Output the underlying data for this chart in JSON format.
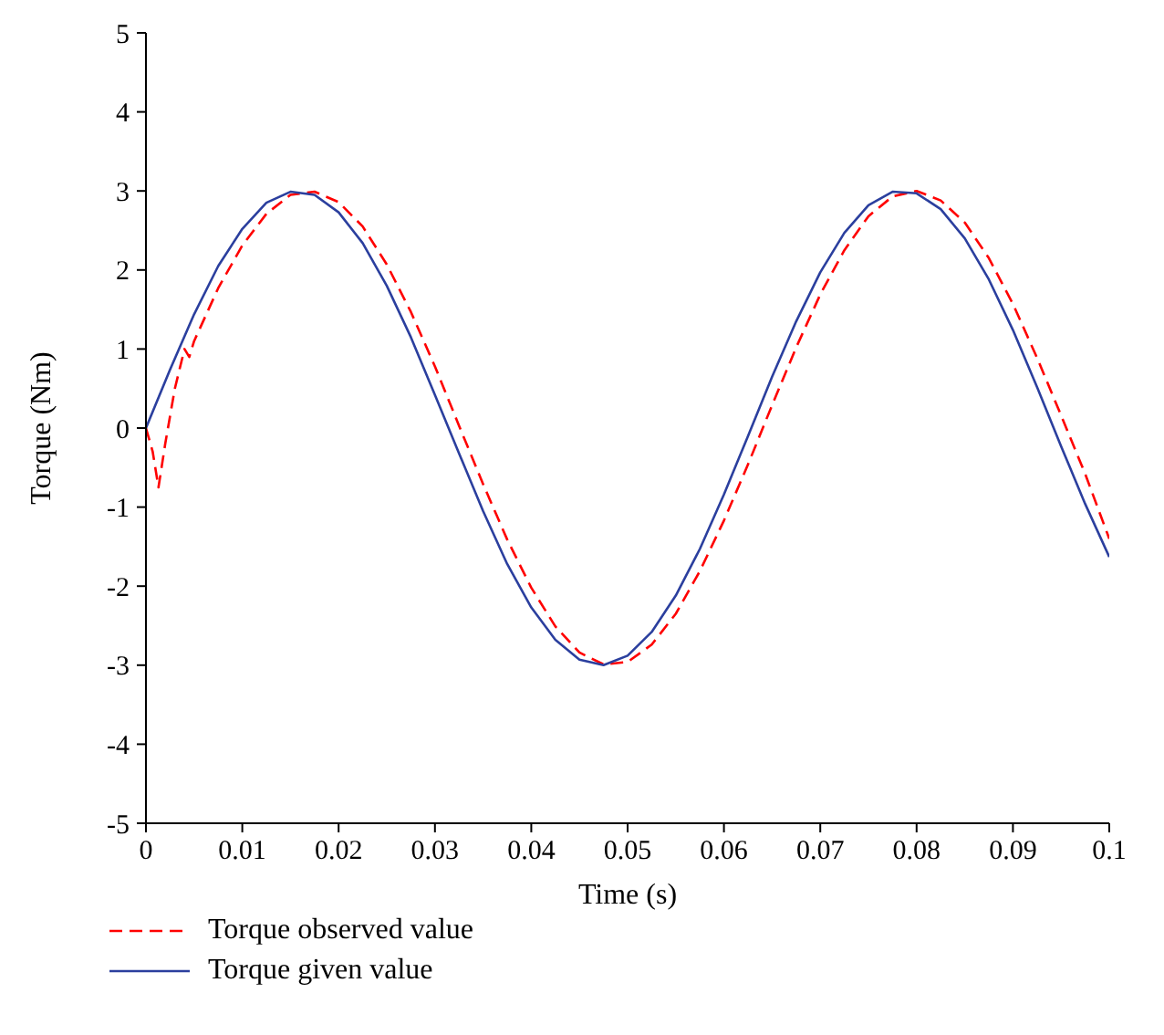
{
  "chart_data": {
    "type": "line",
    "xlabel": "Time (s)",
    "ylabel": "Torque (Nm)",
    "xlim": [
      0,
      0.1
    ],
    "ylim": [
      -5,
      5
    ],
    "xticks": [
      0,
      0.01,
      0.02,
      0.03,
      0.04,
      0.05,
      0.06,
      0.07,
      0.08,
      0.09,
      0.1
    ],
    "yticks": [
      -5,
      -4,
      -3,
      -2,
      -1,
      0,
      1,
      2,
      3,
      4,
      5
    ],
    "grid": false,
    "legend": "bottom",
    "marker": "none",
    "series": [
      {
        "name": "Torque observed value",
        "color": "#ff0000",
        "line_style": "dashed",
        "x": [
          0,
          0.0007,
          0.0013,
          0.002,
          0.003,
          0.004,
          0.0045,
          0.005,
          0.0075,
          0.01,
          0.0125,
          0.015,
          0.0175,
          0.02,
          0.0225,
          0.025,
          0.0275,
          0.03,
          0.0325,
          0.035,
          0.0375,
          0.04,
          0.0425,
          0.045,
          0.0475,
          0.05,
          0.0525,
          0.055,
          0.0575,
          0.06,
          0.0625,
          0.065,
          0.0675,
          0.07,
          0.0725,
          0.075,
          0.0775,
          0.08,
          0.0825,
          0.085,
          0.0875,
          0.09,
          0.0925,
          0.095,
          0.0975,
          0.1
        ],
        "values": [
          0,
          -0.3,
          -0.75,
          -0.2,
          0.5,
          1.0,
          0.9,
          1.1,
          1.77,
          2.31,
          2.71,
          2.95,
          2.99,
          2.86,
          2.55,
          2.07,
          1.47,
          0.78,
          0.03,
          -0.71,
          -1.41,
          -2.02,
          -2.51,
          -2.84,
          -2.99,
          -2.96,
          -2.74,
          -2.35,
          -1.81,
          -1.17,
          -0.46,
          0.29,
          1.02,
          1.69,
          2.25,
          2.68,
          2.93,
          3.0,
          2.88,
          2.6,
          2.15,
          1.57,
          0.89,
          0.16,
          -0.58,
          -1.4
        ]
      },
      {
        "name": "Torque given value",
        "color": "#2b3f9e",
        "line_style": "solid",
        "x": [
          0,
          0.0025,
          0.005,
          0.0075,
          0.01,
          0.0125,
          0.015,
          0.0175,
          0.02,
          0.0225,
          0.025,
          0.0275,
          0.03,
          0.0325,
          0.035,
          0.0375,
          0.04,
          0.0425,
          0.045,
          0.0475,
          0.05,
          0.0525,
          0.055,
          0.0575,
          0.06,
          0.0625,
          0.065,
          0.0675,
          0.07,
          0.0725,
          0.075,
          0.0775,
          0.08,
          0.0825,
          0.085,
          0.0875,
          0.09,
          0.0925,
          0.095,
          0.0975,
          0.1
        ],
        "values": [
          0,
          0.74,
          1.44,
          2.05,
          2.52,
          2.85,
          2.99,
          2.95,
          2.73,
          2.34,
          1.8,
          1.15,
          0.42,
          -0.32,
          -1.05,
          -1.72,
          -2.27,
          -2.68,
          -2.93,
          -3.0,
          -2.88,
          -2.58,
          -2.12,
          -1.53,
          -0.84,
          -0.1,
          0.65,
          1.35,
          1.97,
          2.47,
          2.82,
          2.99,
          2.97,
          2.77,
          2.4,
          1.88,
          1.24,
          0.52,
          -0.23,
          -0.96,
          -1.63
        ]
      }
    ]
  }
}
